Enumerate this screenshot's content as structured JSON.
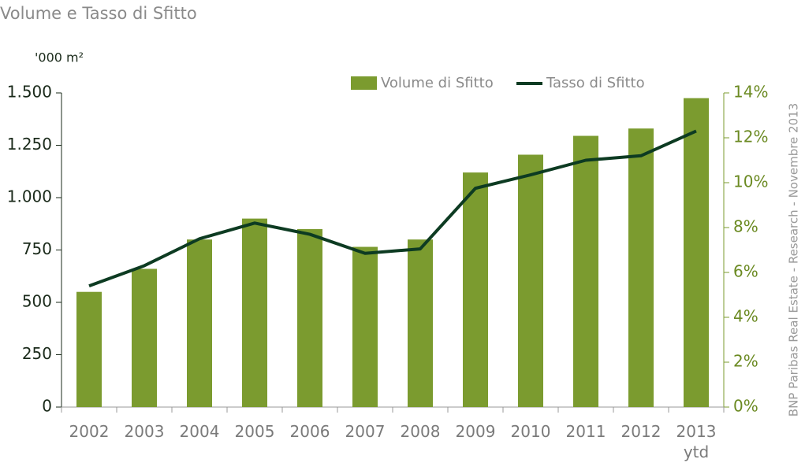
{
  "chart_data": {
    "type": "bar_line",
    "title": "Volume e Tasso di Sfitto",
    "y_label": "'000 m²",
    "note": "BNP Paribas Real Estate - Research - Novembre 2013",
    "categories": [
      "2002",
      "2003",
      "2004",
      "2005",
      "2006",
      "2007",
      "2008",
      "2009",
      "2010",
      "2011",
      "2012",
      "2013 ytd"
    ],
    "series": [
      {
        "name": "Volume di Sfitto",
        "type": "bar",
        "color": "#7b9b2f",
        "values": [
          550,
          660,
          800,
          900,
          850,
          765,
          800,
          1120,
          1205,
          1295,
          1330,
          1475
        ]
      },
      {
        "name": "Tasso di Sfitto",
        "type": "line",
        "axis": "y2",
        "color": "#0d3b22",
        "values": [
          5.4,
          6.3,
          7.5,
          8.2,
          7.7,
          6.85,
          7.05,
          9.75,
          10.35,
          11.0,
          11.2,
          12.3
        ]
      }
    ],
    "ylim": [
      0,
      1500
    ],
    "yticks": [
      0,
      250,
      500,
      750,
      {
        "value": 1000,
        "label": "1.000"
      },
      {
        "value": 1250,
        "label": "1.250"
      },
      {
        "value": 1500,
        "label": "1.500"
      }
    ],
    "y2lim": [
      0,
      14
    ],
    "y2ticks": [
      {
        "value": 0,
        "label": "0%"
      },
      {
        "value": 2,
        "label": "2%"
      },
      {
        "value": 4,
        "label": "4%"
      },
      {
        "value": 6,
        "label": "6%"
      },
      {
        "value": 8,
        "label": "8%"
      },
      {
        "value": 10,
        "label": "10%"
      },
      {
        "value": 12,
        "label": "12%"
      },
      {
        "value": 14,
        "label": "14%"
      }
    ]
  }
}
